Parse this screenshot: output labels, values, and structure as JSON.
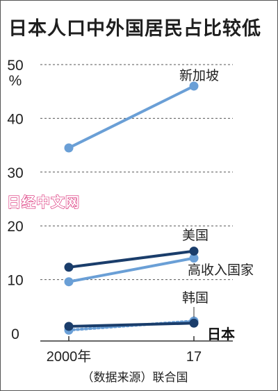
{
  "chart_data": {
    "type": "line",
    "title": "日本人口中外国居民占比较低",
    "y_unit": "%",
    "ylim": [
      0,
      50
    ],
    "y_ticks": [
      "0",
      "10",
      "20",
      "30",
      "40",
      "50"
    ],
    "x": [
      "2000年",
      "17"
    ],
    "source": "（数据来源）联合国",
    "watermark": "日经中文网",
    "grid": "dashed horizontal",
    "series": [
      {
        "name": "新加坡",
        "values": [
          34.5,
          46.0
        ],
        "color": "#6a9fd6",
        "style": "solid",
        "bold_label": false
      },
      {
        "name": "美国",
        "values": [
          12.3,
          15.3
        ],
        "color": "#1a3d6b",
        "style": "solid",
        "bold_label": false
      },
      {
        "name": "高收入国家",
        "values": [
          9.6,
          14.0
        ],
        "color": "#6a9fd6",
        "style": "solid",
        "bold_label": false
      },
      {
        "name": "韩国",
        "values": [
          0.6,
          2.3
        ],
        "color": "#6a9fd6",
        "style": "dotted",
        "bold_label": false
      },
      {
        "name": "日本",
        "values": [
          1.3,
          1.9
        ],
        "color": "#1a3d6b",
        "style": "solid",
        "bold_label": true
      }
    ]
  }
}
